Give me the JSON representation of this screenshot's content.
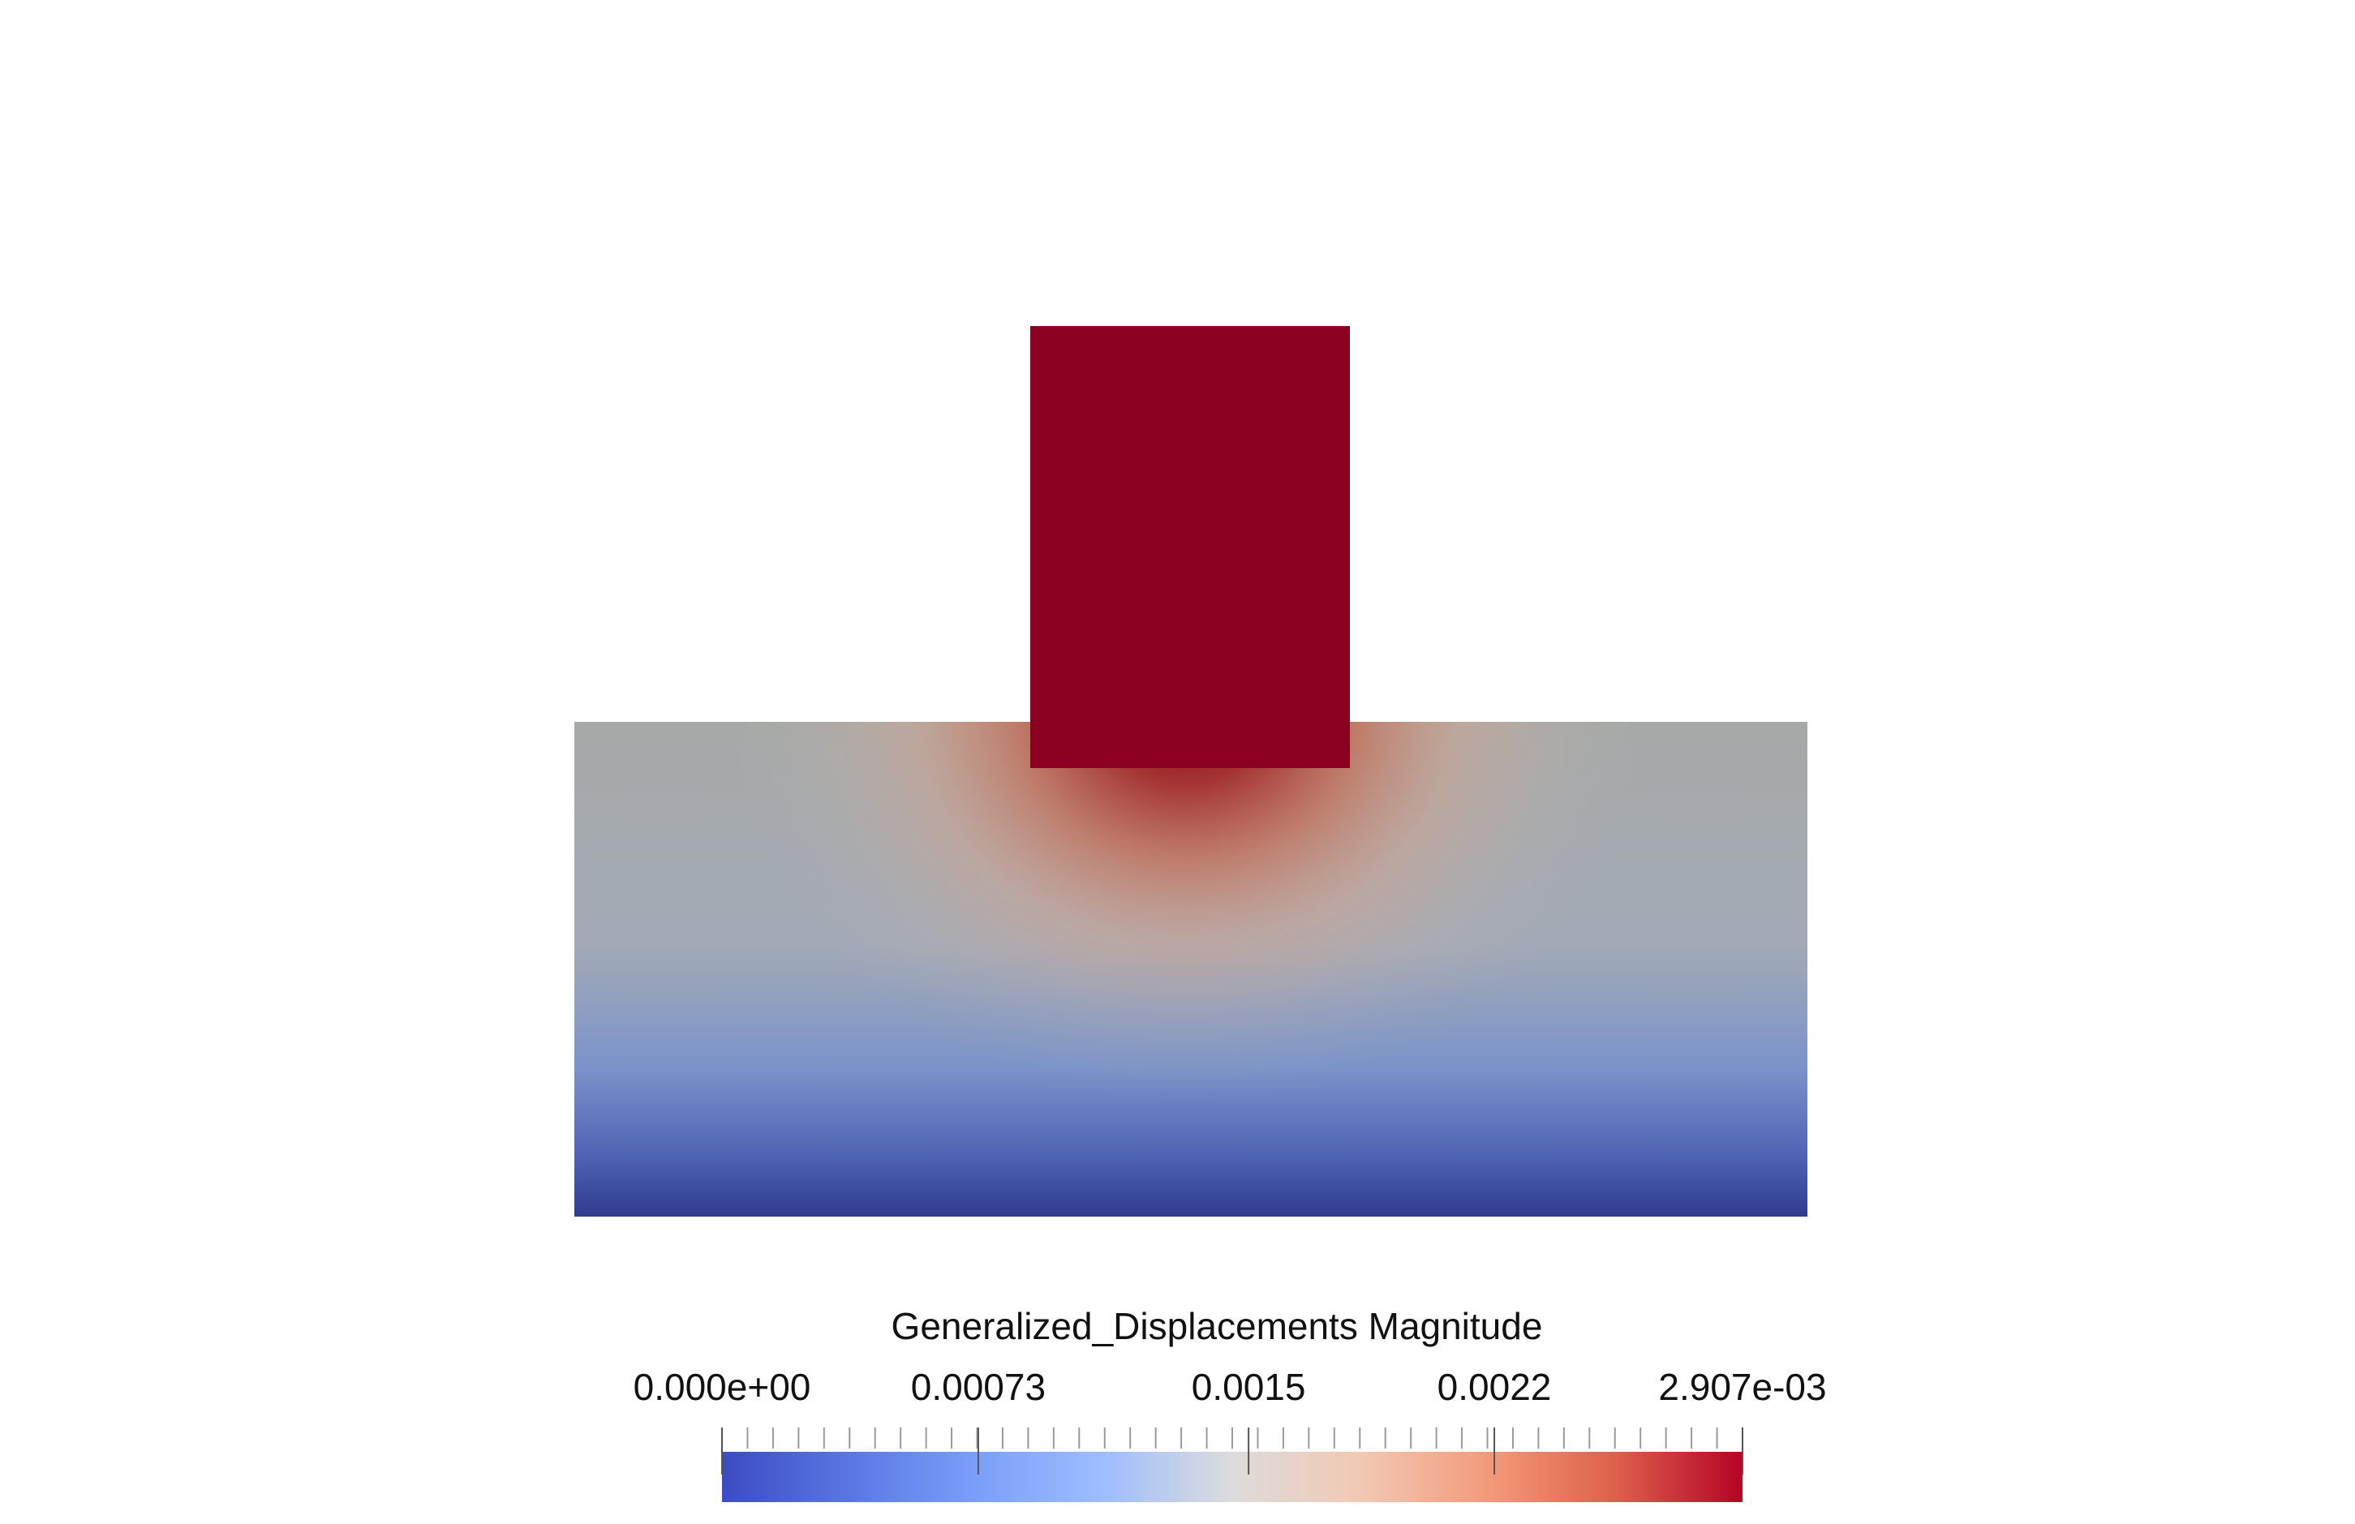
{
  "colors": {
    "background": "#ffffff",
    "colormap": [
      "#3b4cc0",
      "#6788ee",
      "#9abbff",
      "#c9d7f0",
      "#dddddd",
      "#f2cbb7",
      "#f7a889",
      "#e26952",
      "#b40426"
    ],
    "field_max": "#8b0020",
    "field_mid": "#a7a9a9",
    "field_min": "#2f3b8f"
  },
  "scalar_bar": {
    "title": "Generalized_Displacements Magnitude",
    "range": [
      0.0,
      0.002907
    ],
    "labels": [
      "0.000e+00",
      "0.00073",
      "0.0015",
      "0.0022",
      "2.907e-03"
    ],
    "label_values": [
      0.0,
      0.00073,
      0.0015,
      0.0022,
      0.002907
    ],
    "orientation": "horizontal"
  },
  "scene": {
    "objects": [
      "substrate-block",
      "indenter-block"
    ],
    "colored_by": "Generalized_Displacements Magnitude"
  }
}
